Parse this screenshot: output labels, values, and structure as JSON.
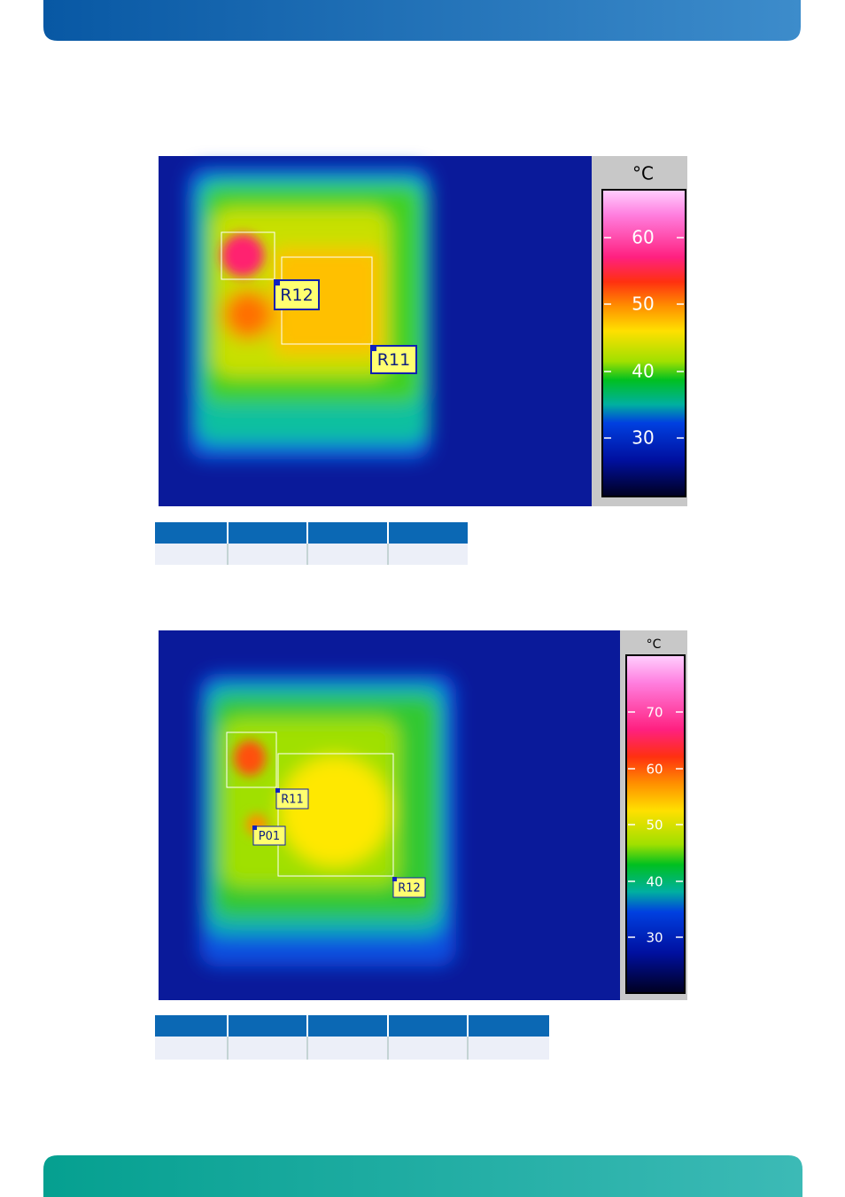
{
  "figures": [
    {
      "scale_unit": "°C",
      "scale_labels": [
        "60",
        "50",
        "40",
        "30"
      ],
      "regions": [
        "R12",
        "R11"
      ]
    },
    {
      "scale_unit": "°C",
      "scale_labels": [
        "70",
        "60",
        "50",
        "40",
        "30"
      ],
      "regions": [
        "R11",
        "P01",
        "R12"
      ]
    }
  ]
}
